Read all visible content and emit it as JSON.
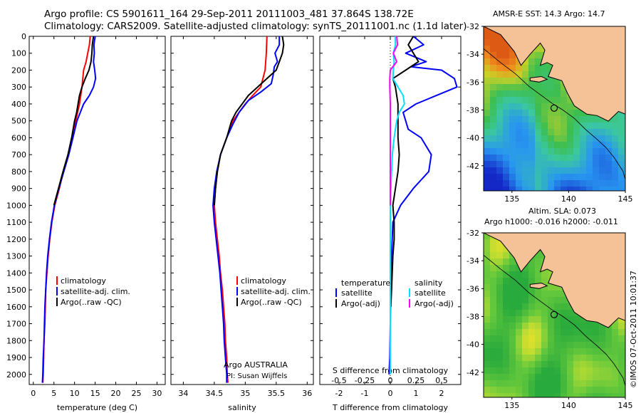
{
  "title": {
    "line1": "Argo profile: CS 5901611_164 29-Sep-2011 20111003_481 37.864S 138.72E",
    "line2": "Climatology: CARS2009. Satellite-adjusted climatology: synTS_20111001.nc (1.1d later)"
  },
  "colors": {
    "climatology": "#ff0000",
    "satellite": "#0000ff",
    "argo": "#000000",
    "satellite_salinity": "#00e0ff",
    "argo_salinity": "#ff00ff",
    "land": "#f5c298"
  },
  "chart_data": [
    {
      "type": "line",
      "xlabel": "temperature (deg C)",
      "ylabel": "",
      "xlim": [
        -1,
        32
      ],
      "ylim": [
        2060,
        0
      ],
      "x_ticks": [
        0,
        5,
        10,
        15,
        20,
        25,
        30
      ],
      "y_ticks": [
        0,
        100,
        200,
        300,
        400,
        500,
        600,
        700,
        800,
        900,
        1000,
        1100,
        1200,
        1300,
        1400,
        1500,
        1600,
        1700,
        1800,
        1900,
        2000
      ],
      "legend": {
        "position": "lower-middle",
        "entries": [
          "climatology",
          "satellite-adj. clim.",
          "Argo(..raw -QC)"
        ]
      },
      "series": [
        {
          "name": "climatology",
          "color_key": "climatology",
          "points": [
            [
              13.8,
              0
            ],
            [
              13.6,
              50
            ],
            [
              13.2,
              100
            ],
            [
              12.8,
              150
            ],
            [
              12.2,
              200
            ],
            [
              11.8,
              300
            ],
            [
              11.2,
              400
            ],
            [
              10.3,
              500
            ],
            [
              9.4,
              600
            ],
            [
              8.5,
              700
            ],
            [
              7.3,
              800
            ],
            [
              6.3,
              900
            ],
            [
              5.2,
              1000
            ],
            [
              4.5,
              1100
            ],
            [
              4.0,
              1200
            ],
            [
              3.6,
              1300
            ],
            [
              3.3,
              1400
            ],
            [
              3.0,
              1500
            ],
            [
              2.9,
              1600
            ],
            [
              2.8,
              1700
            ],
            [
              2.6,
              1800
            ],
            [
              2.5,
              1900
            ],
            [
              2.4,
              2000
            ],
            [
              2.3,
              2050
            ]
          ]
        },
        {
          "name": "satellite-adj. clim.",
          "color_key": "satellite",
          "points": [
            [
              15.0,
              0
            ],
            [
              14.7,
              50
            ],
            [
              14.8,
              100
            ],
            [
              14.6,
              150
            ],
            [
              14.9,
              200
            ],
            [
              15.1,
              250
            ],
            [
              14.6,
              300
            ],
            [
              13.6,
              350
            ],
            [
              12.2,
              400
            ],
            [
              10.6,
              500
            ],
            [
              9.6,
              600
            ],
            [
              8.6,
              700
            ],
            [
              7.4,
              800
            ],
            [
              6.2,
              900
            ],
            [
              5.1,
              1000
            ],
            [
              4.4,
              1100
            ],
            [
              3.9,
              1200
            ],
            [
              3.5,
              1300
            ],
            [
              3.2,
              1400
            ],
            [
              3.0,
              1500
            ],
            [
              2.8,
              1600
            ],
            [
              2.7,
              1700
            ],
            [
              2.6,
              1800
            ],
            [
              2.4,
              1900
            ],
            [
              2.3,
              2000
            ],
            [
              2.2,
              2050
            ]
          ]
        },
        {
          "name": "Argo(..raw -QC)",
          "color_key": "argo",
          "points": [
            [
              14.6,
              0
            ],
            [
              14.3,
              50
            ],
            [
              14.2,
              100
            ],
            [
              14.0,
              150
            ],
            [
              13.5,
              200
            ],
            [
              12.6,
              250
            ],
            [
              11.8,
              300
            ],
            [
              11.2,
              350
            ],
            [
              10.5,
              450
            ],
            [
              10.0,
              500
            ],
            [
              9.3,
              600
            ],
            [
              8.4,
              700
            ],
            [
              7.2,
              800
            ],
            [
              6.1,
              900
            ],
            [
              5.0,
              1000
            ]
          ]
        }
      ]
    },
    {
      "type": "line",
      "xlabel": "salinity",
      "ylabel": "",
      "xlim": [
        33.8,
        36.1
      ],
      "ylim": [
        2060,
        0
      ],
      "x_ticks": [
        34,
        34.5,
        35,
        35.5,
        36
      ],
      "legend": {
        "position": "lower-middle",
        "entries": [
          "climatology",
          "satellite-adj. clim.",
          "Argo(..raw -QC)"
        ]
      },
      "annotations": [
        "Argo AUSTRALIA",
        "PI: Susan Wijffels"
      ],
      "series": [
        {
          "name": "climatology",
          "color_key": "climatology",
          "points": [
            [
              35.35,
              0
            ],
            [
              35.34,
              100
            ],
            [
              35.32,
              200
            ],
            [
              35.25,
              300
            ],
            [
              35.12,
              350
            ],
            [
              35.0,
              400
            ],
            [
              34.9,
              450
            ],
            [
              34.8,
              500
            ],
            [
              34.7,
              600
            ],
            [
              34.6,
              700
            ],
            [
              34.55,
              800
            ],
            [
              34.52,
              900
            ],
            [
              34.5,
              1000
            ],
            [
              34.52,
              1100
            ],
            [
              34.55,
              1200
            ],
            [
              34.58,
              1300
            ],
            [
              34.6,
              1400
            ],
            [
              34.63,
              1500
            ],
            [
              34.65,
              1600
            ],
            [
              34.67,
              1700
            ],
            [
              34.68,
              1800
            ],
            [
              34.7,
              1900
            ],
            [
              34.71,
              2000
            ],
            [
              34.72,
              2050
            ]
          ]
        },
        {
          "name": "satellite-adj. clim.",
          "color_key": "satellite",
          "points": [
            [
              35.55,
              0
            ],
            [
              35.55,
              50
            ],
            [
              35.48,
              100
            ],
            [
              35.52,
              150
            ],
            [
              35.47,
              180
            ],
            [
              35.45,
              230
            ],
            [
              35.42,
              280
            ],
            [
              35.25,
              330
            ],
            [
              35.05,
              380
            ],
            [
              34.9,
              450
            ],
            [
              34.8,
              520
            ],
            [
              34.7,
              600
            ],
            [
              34.6,
              700
            ],
            [
              34.54,
              800
            ],
            [
              34.5,
              900
            ],
            [
              34.48,
              1000
            ],
            [
              34.5,
              1100
            ],
            [
              34.53,
              1200
            ],
            [
              34.56,
              1300
            ],
            [
              34.59,
              1400
            ],
            [
              34.61,
              1500
            ],
            [
              34.63,
              1600
            ],
            [
              34.65,
              1700
            ],
            [
              34.66,
              1800
            ],
            [
              34.68,
              1900
            ],
            [
              34.7,
              2000
            ],
            [
              34.7,
              2050
            ]
          ]
        },
        {
          "name": "Argo(..raw -QC)",
          "color_key": "argo",
          "points": [
            [
              35.6,
              0
            ],
            [
              35.62,
              50
            ],
            [
              35.6,
              100
            ],
            [
              35.55,
              150
            ],
            [
              35.5,
              200
            ],
            [
              35.35,
              250
            ],
            [
              35.2,
              300
            ],
            [
              35.05,
              350
            ],
            [
              34.95,
              400
            ],
            [
              34.85,
              450
            ],
            [
              34.78,
              500
            ],
            [
              34.7,
              600
            ],
            [
              34.6,
              700
            ],
            [
              34.55,
              800
            ],
            [
              34.52,
              900
            ],
            [
              34.5,
              1000
            ]
          ]
        }
      ]
    },
    {
      "type": "line",
      "xlabel": "T difference from climatology",
      "ylabel": "",
      "x2label": "S difference from climatology",
      "xlim": [
        -2.75,
        2.75
      ],
      "x2lim": [
        -0.6875,
        0.6875
      ],
      "ylim": [
        2060,
        0
      ],
      "x_ticks": [
        -2,
        -1,
        0,
        1,
        2
      ],
      "x2_ticks": [
        "-0.5",
        "-0.25",
        "0",
        "0.25",
        "0.5"
      ],
      "legend": {
        "position": "lower-middle",
        "headers": [
          "temperature",
          "salinity"
        ],
        "entries": [
          "satellite",
          "Argo(-adj)",
          "satellite",
          "Argo(-adj)"
        ]
      },
      "series": [
        {
          "name": "temperature satellite",
          "color_key": "satellite",
          "points": [
            [
              0.9,
              0
            ],
            [
              1.3,
              50
            ],
            [
              0.6,
              100
            ],
            [
              1.4,
              150
            ],
            [
              0.8,
              180
            ],
            [
              2.0,
              200
            ],
            [
              2.5,
              250
            ],
            [
              2.6,
              300
            ],
            [
              1.8,
              350
            ],
            [
              1.0,
              400
            ],
            [
              0.5,
              450
            ],
            [
              0.6,
              500
            ],
            [
              0.7,
              550
            ],
            [
              1.2,
              600
            ],
            [
              1.6,
              700
            ],
            [
              1.5,
              800
            ],
            [
              0.9,
              900
            ],
            [
              0.4,
              1000
            ],
            [
              0.1,
              1100
            ],
            [
              0.05,
              1300
            ],
            [
              0.02,
              1500
            ],
            [
              0.0,
              1700
            ],
            [
              -0.02,
              1900
            ],
            [
              -0.05,
              2000
            ]
          ]
        },
        {
          "name": "temperature Argo(-adj)",
          "color_key": "argo",
          "points": [
            [
              0.9,
              0
            ],
            [
              0.7,
              50
            ],
            [
              0.9,
              100
            ],
            [
              1.1,
              150
            ],
            [
              0.6,
              200
            ],
            [
              0.1,
              250
            ],
            [
              0.2,
              300
            ],
            [
              0.3,
              400
            ],
            [
              0.3,
              500
            ],
            [
              0.3,
              600
            ],
            [
              0.35,
              700
            ],
            [
              0.3,
              800
            ],
            [
              0.2,
              900
            ],
            [
              0.1,
              1000
            ],
            [
              0.15,
              1100
            ],
            [
              0.15,
              1200
            ],
            [
              0.1,
              1300
            ],
            [
              0.05,
              1500
            ],
            [
              0.02,
              1600
            ]
          ]
        },
        {
          "name": "salinity satellite",
          "color_key": "satellite_salinity",
          "points": [
            [
              0.2,
              0
            ],
            [
              0.2,
              50
            ],
            [
              0.12,
              100
            ],
            [
              0.15,
              150
            ],
            [
              0.12,
              200
            ],
            [
              0.1,
              250
            ],
            [
              0.3,
              300
            ],
            [
              0.5,
              350
            ],
            [
              0.55,
              400
            ],
            [
              0.35,
              450
            ],
            [
              0.25,
              500
            ],
            [
              0.15,
              600
            ],
            [
              0.08,
              700
            ],
            [
              0.05,
              800
            ],
            [
              0.02,
              900
            ],
            [
              0.0,
              1000
            ],
            [
              0.0,
              1500
            ],
            [
              0.0,
              2000
            ]
          ]
        },
        {
          "name": "salinity Argo(-adj)",
          "color_key": "argo_salinity",
          "points": [
            [
              0.25,
              0
            ],
            [
              0.28,
              50
            ],
            [
              0.12,
              100
            ],
            [
              0.25,
              150
            ],
            [
              0.0,
              200
            ],
            [
              -0.02,
              250
            ],
            [
              -0.02,
              300
            ],
            [
              0.0,
              400
            ],
            [
              0.0,
              500
            ],
            [
              0.0,
              600
            ],
            [
              0.0,
              700
            ],
            [
              0.0,
              800
            ],
            [
              0.0,
              900
            ],
            [
              0.0,
              1000
            ]
          ]
        }
      ]
    },
    {
      "type": "heatmap",
      "title": "AMSR-E SST: 14.3 Argo: 14.7",
      "xlim": [
        132.5,
        145
      ],
      "ylim": [
        -43.8,
        -32
      ],
      "x_ticks": [
        135,
        140,
        145
      ],
      "y_ticks": [
        -32,
        -34,
        -36,
        -38,
        -40,
        -42
      ],
      "marker": {
        "lon": 138.72,
        "lat": -37.864
      }
    },
    {
      "type": "heatmap",
      "title": "Altim. SLA: 0.073",
      "subtitle": "Argo h1000: -0.016 h2000: -0.011",
      "xlim": [
        132.5,
        145
      ],
      "ylim": [
        -43.8,
        -32
      ],
      "x_ticks": [
        135,
        140,
        145
      ],
      "y_ticks": [
        -32,
        -34,
        -36,
        -38,
        -40,
        -42
      ],
      "marker": {
        "lon": 138.72,
        "lat": -37.864
      }
    }
  ],
  "stamp": "©IMOS 07-Oct-2011 10:01:37"
}
